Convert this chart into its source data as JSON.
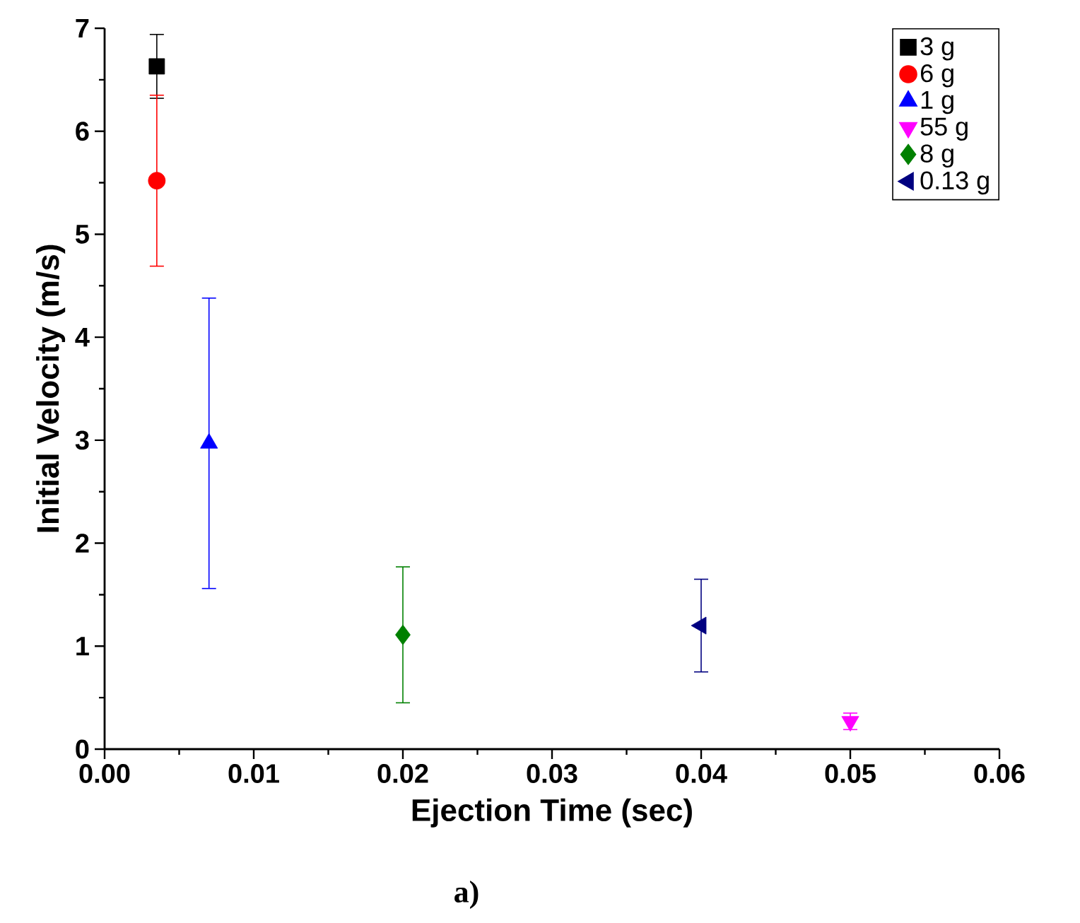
{
  "chart_data": {
    "type": "scatter",
    "xlabel": "Ejection Time (sec)",
    "ylabel": "Initial Velocity (m/s)",
    "annotations": [
      "a)"
    ],
    "xlim": [
      0,
      0.06
    ],
    "ylim": [
      0,
      7
    ],
    "xticks": [
      {
        "value": 0,
        "label": "0.00"
      },
      {
        "value": 0.01,
        "label": "0.01"
      },
      {
        "value": 0.02,
        "label": "0.02"
      },
      {
        "value": 0.03,
        "label": "0.03"
      },
      {
        "value": 0.04,
        "label": "0.04"
      },
      {
        "value": 0.05,
        "label": "0.05"
      },
      {
        "value": 0.06,
        "label": "0.06"
      }
    ],
    "yticks": [
      0,
      1,
      2,
      3,
      4,
      5,
      6,
      7
    ],
    "legend": "top right",
    "grid": false,
    "series": [
      {
        "name": "3 g",
        "color": "#000000",
        "marker": "square",
        "x": [
          0.0035
        ],
        "values": [
          6.63
        ],
        "errors": [
          0.31
        ]
      },
      {
        "name": "6 g",
        "color": "#ff0000",
        "marker": "circle",
        "x": [
          0.0035
        ],
        "values": [
          5.52
        ],
        "errors": [
          0.83
        ]
      },
      {
        "name": "1 g",
        "color": "#0000ff",
        "marker": "triangle",
        "x": [
          0.007
        ],
        "values": [
          2.97
        ],
        "errors": [
          1.41
        ]
      },
      {
        "name": "55 g",
        "color": "#ff00ff",
        "marker": "triangle-down",
        "x": [
          0.05
        ],
        "values": [
          0.27
        ],
        "errors": [
          0.08
        ]
      },
      {
        "name": "8 g",
        "color": "#008000",
        "marker": "diamond",
        "x": [
          0.02
        ],
        "values": [
          1.11
        ],
        "errors": [
          0.66
        ]
      },
      {
        "name": "0.13 g",
        "color": "#000080",
        "marker": "triangle-left",
        "x": [
          0.04
        ],
        "values": [
          1.2
        ],
        "errors": [
          0.45
        ]
      }
    ]
  }
}
